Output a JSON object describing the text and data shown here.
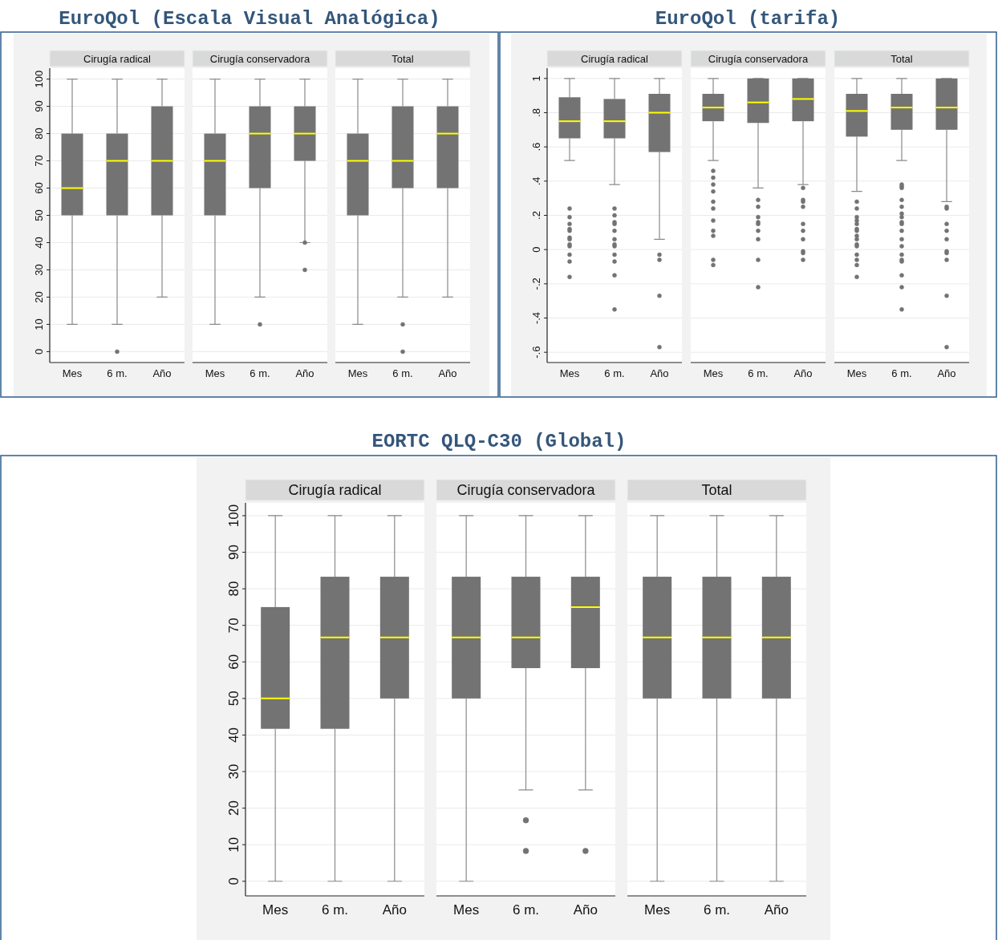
{
  "chart_data": [
    {
      "type": "box",
      "subtitle": "Cirugía radical",
      "categories": [
        "Mes",
        "6 m.",
        "Año"
      ],
      "ylim": [
        -4,
        104
      ],
      "yticks": [
        0,
        10,
        20,
        30,
        40,
        50,
        60,
        70,
        80,
        90,
        100
      ],
      "grid": "y",
      "series": [
        {
          "color": "#737373",
          "boxes": [
            {
              "low": 10,
              "q1": 50,
              "median": 60,
              "q3": 80,
              "high": 100
            },
            {
              "low": 10,
              "q1": 50,
              "median": 70,
              "q3": 80,
              "high": 100,
              "outliers": [
                0
              ]
            },
            {
              "low": 20,
              "q1": 50,
              "median": 70,
              "q3": 90,
              "high": 100
            }
          ]
        }
      ]
    },
    {
      "type": "box",
      "title": "EuroQol (Escala Visual Analógica)",
      "subtitle": "Cirugía conservadora",
      "categories": [
        "Mes",
        "6 m.",
        "Año"
      ],
      "ylim": [
        -4,
        104
      ],
      "yticks": [
        0,
        10,
        20,
        30,
        40,
        50,
        60,
        70,
        80,
        90,
        100
      ],
      "grid": "y",
      "tick_labels": "x",
      "series": [
        {
          "color": "#737373",
          "boxes": [
            {
              "low": 10,
              "q1": 50,
              "median": 70,
              "q3": 80,
              "high": 100
            },
            {
              "low": 20,
              "q1": 60,
              "median": 80,
              "q3": 90,
              "high": 100,
              "outliers": [
                10
              ]
            },
            {
              "low": 40,
              "q1": 70,
              "median": 80,
              "q3": 90,
              "high": 100,
              "outliers": [
                40,
                30
              ]
            }
          ]
        }
      ]
    },
    {
      "type": "box",
      "subtitle": "Total",
      "categories": [
        "Mes",
        "6 m.",
        "Año"
      ],
      "ylim": [
        -4,
        104
      ],
      "yticks": [
        0,
        10,
        20,
        30,
        40,
        50,
        60,
        70,
        80,
        90,
        100
      ],
      "grid": "y",
      "tick_labels": "x",
      "series": [
        {
          "color": "#737373",
          "boxes": [
            {
              "low": 10,
              "q1": 50,
              "median": 70,
              "q3": 80,
              "high": 100
            },
            {
              "low": 20,
              "q1": 60,
              "median": 70,
              "q3": 90,
              "high": 100,
              "outliers": [
                10,
                0
              ]
            },
            {
              "low": 20,
              "q1": 60,
              "median": 80,
              "q3": 90,
              "high": 100
            }
          ]
        }
      ]
    },
    {
      "type": "box",
      "subtitle": "Cirugía radical",
      "categories": [
        "Mes",
        "6 m.",
        "Año"
      ],
      "ylim": [
        -0.66,
        1.06
      ],
      "yticks": [
        {
          "value": -0.6,
          "label": "-.6"
        },
        {
          "value": -0.4,
          "label": "-.4"
        },
        {
          "value": -0.2,
          "label": "-.2"
        },
        0,
        {
          "value": 0.2,
          "label": ".2"
        },
        {
          "value": 0.4,
          "label": ".4"
        },
        {
          "value": 0.6,
          "label": ".6"
        },
        {
          "value": 0.8,
          "label": ".8"
        },
        1
      ],
      "grid": "y",
      "series": [
        {
          "color": "#737373",
          "boxes": [
            {
              "low": 0.52,
              "q1": 0.65,
              "median": 0.75,
              "q3": 0.89,
              "high": 1,
              "outliers": [
                0.24,
                0.19,
                0.15,
                0.12,
                0.11,
                0.07,
                0.06,
                0.03,
                0.02,
                -0.03,
                -0.07,
                -0.16
              ]
            },
            {
              "low": 0.38,
              "q1": 0.65,
              "median": 0.75,
              "q3": 0.88,
              "high": 1,
              "outliers": [
                0.24,
                0.2,
                0.16,
                0.15,
                0.11,
                0.06,
                0.03,
                0.02,
                -0.03,
                -0.07,
                -0.15,
                -0.35
              ]
            },
            {
              "low": 0.06,
              "q1": 0.57,
              "median": 0.8,
              "q3": 0.91,
              "high": 1,
              "outliers": [
                -0.03,
                -0.06,
                -0.27,
                -0.57
              ]
            }
          ]
        }
      ]
    },
    {
      "type": "box",
      "title": "EuroQol (tarifa)",
      "subtitle": "Cirugía conservadora",
      "categories": [
        "Mes",
        "6 m.",
        "Año"
      ],
      "ylim": [
        -0.66,
        1.06
      ],
      "yticks": [
        -0.6,
        -0.4,
        -0.2,
        0,
        0.2,
        0.4,
        0.6,
        0.8,
        1
      ],
      "grid": "y",
      "tick_labels": "x",
      "series": [
        {
          "color": "#737373",
          "boxes": [
            {
              "low": 0.52,
              "q1": 0.75,
              "median": 0.83,
              "q3": 0.91,
              "high": 1,
              "outliers": [
                0.46,
                0.42,
                0.38,
                0.34,
                0.28,
                0.24,
                0.17,
                0.11,
                0.08,
                -0.06,
                -0.09
              ]
            },
            {
              "low": 0.36,
              "q1": 0.74,
              "median": 0.86,
              "q3": 1,
              "high": 1,
              "outliers": [
                0.29,
                0.25,
                0.19,
                0.16,
                0.15,
                0.11,
                0.06,
                -0.06,
                -0.22
              ]
            },
            {
              "low": 0.38,
              "q1": 0.75,
              "median": 0.88,
              "q3": 1,
              "high": 1,
              "outliers": [
                0.36,
                0.29,
                0.28,
                0.25,
                0.15,
                0.11,
                0.06,
                -0.01,
                -0.02,
                -0.06
              ]
            }
          ]
        }
      ]
    },
    {
      "type": "box",
      "subtitle": "Total",
      "categories": [
        "Mes",
        "6 m.",
        "Año"
      ],
      "ylim": [
        -0.66,
        1.06
      ],
      "yticks": [
        -0.6,
        -0.4,
        -0.2,
        0,
        0.2,
        0.4,
        0.6,
        0.8,
        1
      ],
      "grid": "y",
      "tick_labels": "x",
      "series": [
        {
          "color": "#737373",
          "boxes": [
            {
              "low": 0.34,
              "q1": 0.66,
              "median": 0.81,
              "q3": 0.91,
              "high": 1,
              "outliers": [
                0.28,
                0.24,
                0.19,
                0.17,
                0.15,
                0.12,
                0.11,
                0.08,
                0.06,
                0.03,
                0.02,
                -0.03,
                -0.06,
                -0.09,
                -0.16
              ]
            },
            {
              "low": 0.52,
              "q1": 0.7,
              "median": 0.83,
              "q3": 0.91,
              "high": 1,
              "outliers": [
                0.38,
                0.37,
                0.36,
                0.29,
                0.25,
                0.21,
                0.19,
                0.16,
                0.15,
                0.11,
                0.06,
                0.02,
                -0.03,
                -0.06,
                -0.07,
                -0.15,
                -0.22,
                -0.35
              ]
            },
            {
              "low": 0.28,
              "q1": 0.7,
              "median": 0.83,
              "q3": 1,
              "high": 1,
              "outliers": [
                0.25,
                0.24,
                0.15,
                0.11,
                0.06,
                -0.01,
                -0.02,
                -0.06,
                -0.27,
                -0.57
              ]
            }
          ]
        }
      ]
    },
    {
      "type": "box",
      "subtitle": "Cirugía radical",
      "categories": [
        "Mes",
        "6 m.",
        "Año"
      ],
      "ylim": [
        -4,
        103.5
      ],
      "yticks": [
        0,
        10,
        20,
        30,
        40,
        50,
        60,
        70,
        80,
        90,
        100
      ],
      "grid": "y",
      "series": [
        {
          "color": "#737373",
          "boxes": [
            {
              "low": 0,
              "q1": 41.7,
              "median": 50,
              "q3": 75,
              "high": 100
            },
            {
              "low": 0,
              "q1": 41.7,
              "median": 66.7,
              "q3": 83.3,
              "high": 100
            },
            {
              "low": 0,
              "q1": 50,
              "median": 66.7,
              "q3": 83.3,
              "high": 100
            }
          ]
        }
      ]
    },
    {
      "type": "box",
      "title": "EORTC QLQ-C30 (Global)",
      "subtitle": "Cirugía conservadora",
      "categories": [
        "Mes",
        "6 m.",
        "Año"
      ],
      "ylim": [
        -4,
        103.5
      ],
      "yticks": [
        0,
        10,
        20,
        30,
        40,
        50,
        60,
        70,
        80,
        90,
        100
      ],
      "grid": "y",
      "tick_labels": "x",
      "series": [
        {
          "color": "#737373",
          "boxes": [
            {
              "low": 0,
              "q1": 50,
              "median": 66.7,
              "q3": 83.3,
              "high": 100
            },
            {
              "low": 25,
              "q1": 58.3,
              "median": 66.7,
              "q3": 83.3,
              "high": 100,
              "outliers": [
                16.7,
                8.3
              ]
            },
            {
              "low": 25,
              "q1": 58.3,
              "median": 75,
              "q3": 83.3,
              "high": 100,
              "outliers": [
                8.3
              ]
            }
          ]
        }
      ]
    },
    {
      "type": "box",
      "subtitle": "Total",
      "categories": [
        "Mes",
        "6 m.",
        "Año"
      ],
      "ylim": [
        -4,
        103.5
      ],
      "yticks": [
        0,
        10,
        20,
        30,
        40,
        50,
        60,
        70,
        80,
        90,
        100
      ],
      "grid": "y",
      "tick_labels": "x",
      "series": [
        {
          "color": "#737373",
          "boxes": [
            {
              "low": 0,
              "q1": 50,
              "median": 66.7,
              "q3": 83.3,
              "high": 100
            },
            {
              "low": 0,
              "q1": 50,
              "median": 66.7,
              "q3": 83.3,
              "high": 100
            },
            {
              "low": 0,
              "q1": 50,
              "median": 66.7,
              "q3": 83.3,
              "high": 100
            }
          ]
        }
      ]
    }
  ]
}
